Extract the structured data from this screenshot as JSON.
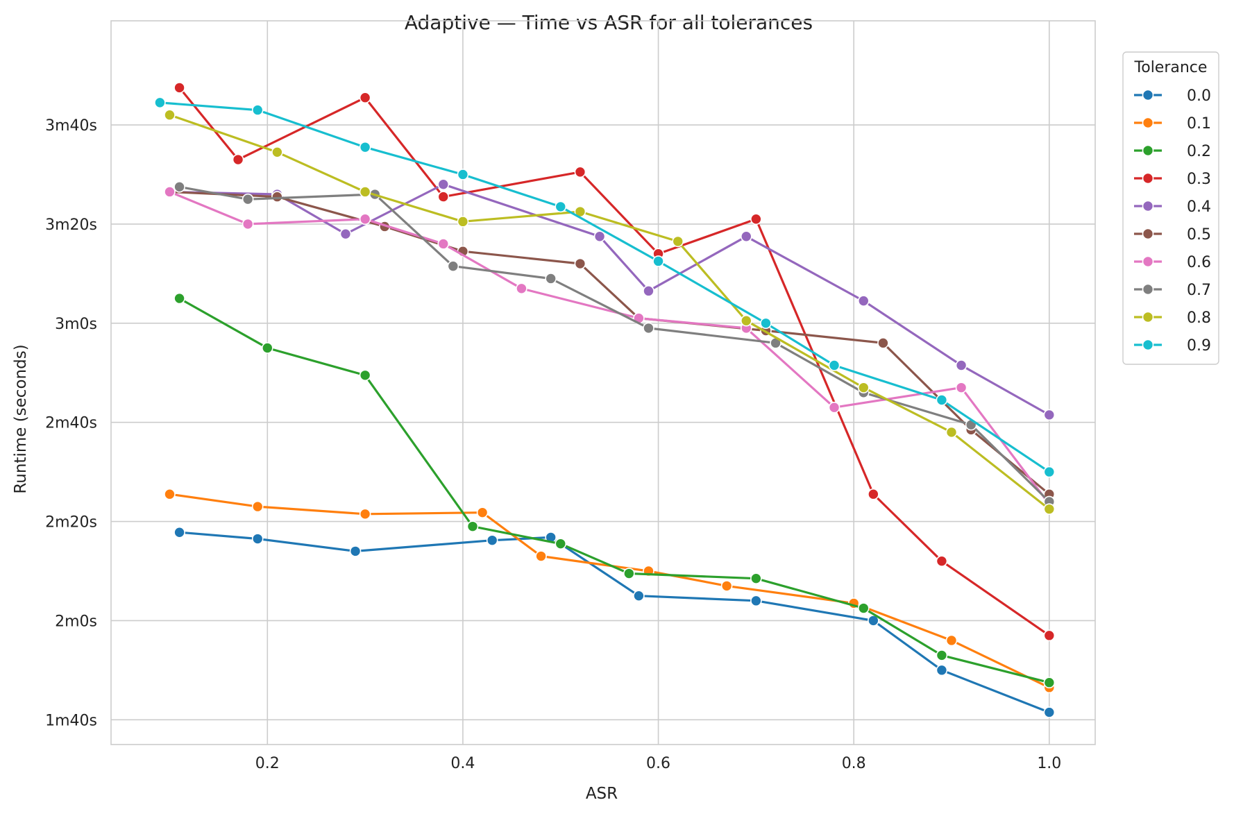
{
  "chart_data": {
    "type": "line",
    "title": "Adaptive — Time vs ASR for all tolerances",
    "xlabel": "ASR",
    "ylabel": "Runtime (seconds)",
    "xlim": [
      0.04,
      1.047
    ],
    "ylim": [
      95,
      241
    ],
    "xticks": [
      0.2,
      0.4,
      0.6,
      0.8,
      1.0
    ],
    "xtick_labels": [
      "0.2",
      "0.4",
      "0.6",
      "0.8",
      "1.0"
    ],
    "yticks": [
      100,
      120,
      140,
      160,
      180,
      200,
      220
    ],
    "ytick_labels": [
      "1m40s",
      "2m0s",
      "2m20s",
      "2m40s",
      "3m0s",
      "3m20s",
      "3m40s"
    ],
    "grid": true,
    "legend": {
      "title": "Tolerance",
      "placement": "outside-top-right"
    },
    "series": [
      {
        "name": "0.0",
        "color": "#1f77b4",
        "x": [
          0.11,
          0.19,
          0.29,
          0.43,
          0.49,
          0.58,
          0.7,
          0.82,
          0.89,
          1.0
        ],
        "y": [
          137.8,
          136.5,
          134.0,
          136.2,
          136.8,
          125.0,
          124.0,
          120.0,
          110.0,
          101.5
        ]
      },
      {
        "name": "0.1",
        "color": "#ff7f0e",
        "x": [
          0.1,
          0.19,
          0.3,
          0.42,
          0.48,
          0.59,
          0.67,
          0.8,
          0.9,
          1.0
        ],
        "y": [
          145.5,
          143.0,
          141.5,
          141.8,
          133.0,
          130.0,
          127.0,
          123.5,
          116.0,
          106.5
        ]
      },
      {
        "name": "0.2",
        "color": "#2ca02c",
        "x": [
          0.11,
          0.2,
          0.3,
          0.41,
          0.5,
          0.57,
          0.7,
          0.81,
          0.89,
          1.0
        ],
        "y": [
          185.0,
          175.0,
          169.5,
          139.0,
          135.5,
          129.5,
          128.5,
          122.5,
          113.0,
          107.5
        ]
      },
      {
        "name": "0.3",
        "color": "#d62728",
        "x": [
          0.11,
          0.17,
          0.3,
          0.38,
          0.52,
          0.6,
          0.7,
          0.82,
          0.89,
          1.0
        ],
        "y": [
          227.5,
          213.0,
          225.5,
          205.5,
          210.5,
          194.0,
          201.0,
          145.5,
          132.0,
          117.0
        ]
      },
      {
        "name": "0.4",
        "color": "#9467bd",
        "x": [
          0.1,
          0.21,
          0.28,
          0.38,
          0.54,
          0.59,
          0.69,
          0.81,
          0.91,
          1.0
        ],
        "y": [
          206.5,
          206.0,
          198.0,
          208.0,
          197.5,
          186.5,
          197.5,
          184.5,
          171.5,
          161.5
        ]
      },
      {
        "name": "0.5",
        "color": "#8c564b",
        "x": [
          0.1,
          0.21,
          0.32,
          0.4,
          0.52,
          0.58,
          0.71,
          0.83,
          0.92,
          1.0
        ],
        "y": [
          206.5,
          205.5,
          199.5,
          194.5,
          192.0,
          181.0,
          178.5,
          176.0,
          158.5,
          145.5
        ]
      },
      {
        "name": "0.6",
        "color": "#e377c2",
        "x": [
          0.1,
          0.18,
          0.3,
          0.38,
          0.46,
          0.58,
          0.69,
          0.78,
          0.91,
          1.0
        ],
        "y": [
          206.5,
          200.0,
          201.0,
          196.0,
          187.0,
          181.0,
          179.0,
          163.0,
          167.0,
          143.5
        ]
      },
      {
        "name": "0.7",
        "color": "#7f7f7f",
        "x": [
          0.11,
          0.18,
          0.31,
          0.39,
          0.49,
          0.59,
          0.72,
          0.81,
          0.92,
          1.0
        ],
        "y": [
          207.5,
          205.0,
          206.0,
          191.5,
          189.0,
          179.0,
          176.0,
          166.0,
          159.5,
          144.0
        ]
      },
      {
        "name": "0.8",
        "color": "#bcbd22",
        "x": [
          0.1,
          0.21,
          0.3,
          0.4,
          0.52,
          0.62,
          0.69,
          0.81,
          0.9,
          1.0
        ],
        "y": [
          222.0,
          214.5,
          206.5,
          200.5,
          202.5,
          196.5,
          180.5,
          167.0,
          158.0,
          142.5
        ]
      },
      {
        "name": "0.9",
        "color": "#17becf",
        "x": [
          0.09,
          0.19,
          0.3,
          0.4,
          0.5,
          0.6,
          0.71,
          0.78,
          0.89,
          1.0
        ],
        "y": [
          224.5,
          223.0,
          215.5,
          210.0,
          203.5,
          192.5,
          180.0,
          171.5,
          164.5,
          150.0
        ]
      }
    ]
  }
}
